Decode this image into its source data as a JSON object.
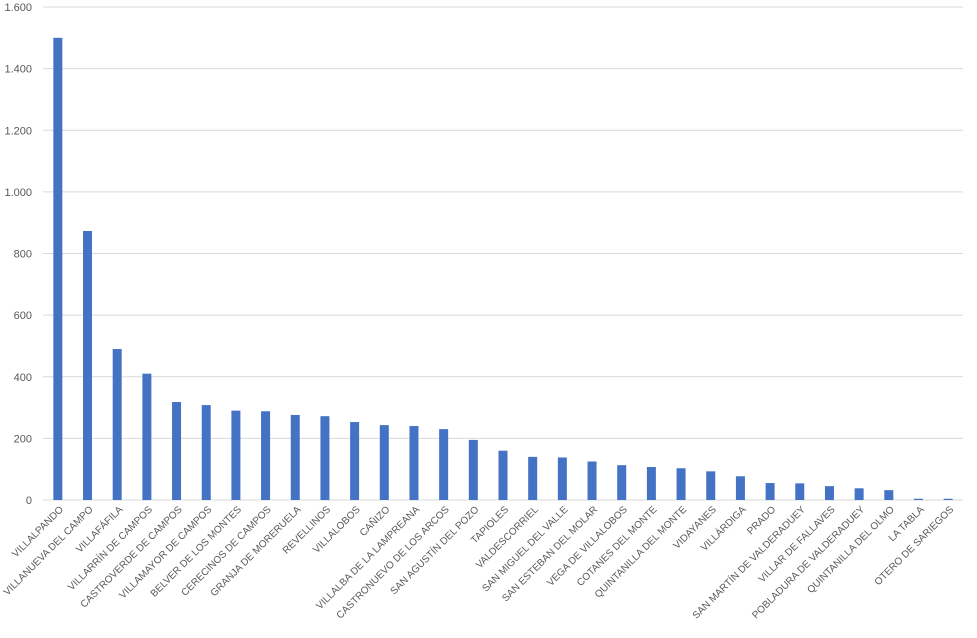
{
  "chart_data": {
    "type": "bar",
    "title": "",
    "xlabel": "",
    "ylabel": "",
    "ylim": [
      0,
      1600
    ],
    "yticks": [
      0,
      200,
      400,
      600,
      800,
      1000,
      1200,
      1400,
      1600
    ],
    "ytick_labels": [
      "0",
      "200",
      "400",
      "600",
      "800",
      "1.000",
      "1.200",
      "1.400",
      "1.600"
    ],
    "grid": true,
    "legend": "none",
    "bar_color": "#4472C4",
    "categories": [
      "VILLALPANDO",
      "VILLANUEVA DEL CAMPO",
      "VILLAFÁFILA",
      "VILLARRÍN DE CAMPOS",
      "CASTROVERDE DE CAMPOS",
      "VILLAMAYOR DE CAMPOS",
      "BELVER DE LOS MONTES",
      "CERECINOS DE CAMPOS",
      "GRANJA DE MORERUELA",
      "REVELLINOS",
      "VILLALOBOS",
      "CAÑIZO",
      "VILLALBA DE LA LAMPREANA",
      "CASTRONUEVO DE LOS ARCOS",
      "SAN AGUSTÍN DEL POZO",
      "TAPIOLES",
      "VALDESCORRIEL",
      "SAN MIGUEL DEL VALLE",
      "SAN ESTEBAN DEL MOLAR",
      "VEGA DE VILLALOBOS",
      "COTANES DEL MONTE",
      "QUINTANILLA DEL MONTE",
      "VIDAYANES",
      "VILLÁRDIGA",
      "PRADO",
      "SAN MARTÍN DE VALDERADUEY",
      "VILLAR DE FALLAVES",
      "POBLADURA DE VALDERADUEY",
      "QUINTANILLA DEL OLMO",
      "LA TABLA",
      "OTERO DE SARIEGOS"
    ],
    "values": [
      1500,
      873,
      490,
      410,
      318,
      308,
      290,
      288,
      276,
      272,
      253,
      243,
      240,
      230,
      195,
      160,
      140,
      138,
      125,
      113,
      107,
      103,
      93,
      77,
      55,
      54,
      45,
      38,
      32,
      4,
      4
    ]
  }
}
